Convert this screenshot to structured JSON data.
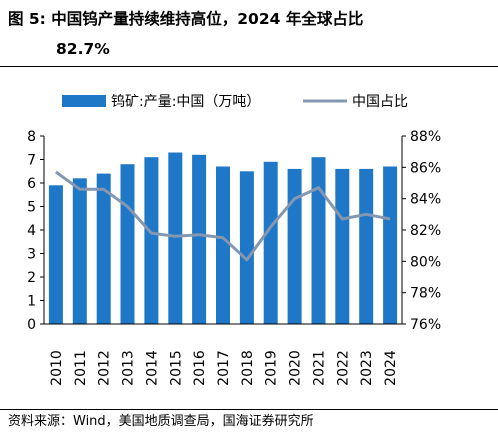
{
  "figure": {
    "title_line1": "图 5:  中国钨产量持续维持高位，2024 年全球占比",
    "title_line2": "82.7%",
    "source": "资料来源：Wind，美国地质调查局，国海证券研究所"
  },
  "colors": {
    "bar": "#1f77c8",
    "line": "#8497b0"
  },
  "chart_data": {
    "type": "bar",
    "categories": [
      "2010",
      "2011",
      "2012",
      "2013",
      "2014",
      "2015",
      "2016",
      "2017",
      "2018",
      "2019",
      "2020",
      "2021",
      "2022",
      "2023",
      "2024"
    ],
    "series": [
      {
        "name": "钨矿:产量:中国（万吨）",
        "type": "bar",
        "axis": "left",
        "values": [
          5.9,
          6.2,
          6.4,
          6.8,
          7.1,
          7.3,
          7.2,
          6.7,
          6.5,
          6.9,
          6.6,
          7.1,
          6.6,
          6.6,
          6.7
        ]
      },
      {
        "name": "中国占比",
        "type": "line",
        "axis": "right",
        "values": [
          85.7,
          84.6,
          84.6,
          83.5,
          81.8,
          81.6,
          81.7,
          81.5,
          80.1,
          82.2,
          84.0,
          84.7,
          82.7,
          83.0,
          82.7
        ]
      }
    ],
    "y_left": {
      "min": 0,
      "max": 8,
      "ticks": [
        "0",
        "1",
        "2",
        "3",
        "4",
        "5",
        "6",
        "7",
        "8"
      ]
    },
    "y_right": {
      "min": 76,
      "max": 88,
      "ticks": [
        "76%",
        "78%",
        "80%",
        "82%",
        "84%",
        "86%",
        "88%"
      ]
    },
    "legend_position": "top",
    "grid": false
  }
}
